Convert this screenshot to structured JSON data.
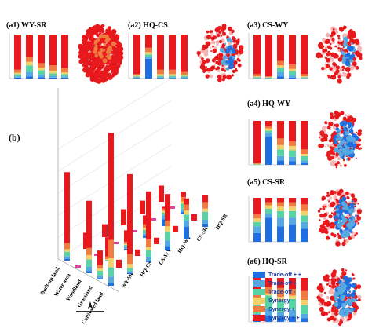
{
  "labels": {
    "b": "(b)"
  },
  "colors": [
    "#1f6fe0",
    "#55a8e0",
    "#58d3a5",
    "#f2d06b",
    "#f07b40",
    "#e8191c"
  ],
  "legend": [
    "Trade-off + +",
    "Trade-off +",
    "Trade-off -",
    "Synergy -",
    "Synergy +",
    "Synergy + +"
  ],
  "panels": [
    {
      "id": "(a1)",
      "name": "WY-SR",
      "bars": [
        [
          0.02,
          0.03,
          0.05,
          0.03,
          0.07,
          0.8
        ],
        [
          0.05,
          0.1,
          0.15,
          0.08,
          0.12,
          0.5
        ],
        [
          0.03,
          0.06,
          0.1,
          0.06,
          0.1,
          0.65
        ],
        [
          0.02,
          0.04,
          0.06,
          0.06,
          0.12,
          0.7
        ],
        [
          0.02,
          0.03,
          0.05,
          0.04,
          0.1,
          0.76
        ]
      ]
    },
    {
      "id": "(a2)",
      "name": "HQ-CS",
      "bars": [
        [
          0.01,
          0.02,
          0.02,
          0.02,
          0.03,
          0.9
        ],
        [
          0.45,
          0.05,
          0.05,
          0.05,
          0.1,
          0.3
        ],
        [
          0.01,
          0.02,
          0.03,
          0.04,
          0.1,
          0.8
        ],
        [
          0.01,
          0.02,
          0.03,
          0.04,
          0.1,
          0.8
        ],
        [
          0.01,
          0.02,
          0.03,
          0.03,
          0.06,
          0.85
        ]
      ]
    },
    {
      "id": "(a3)",
      "name": "CS-WY",
      "bars": [
        [
          0.0,
          0.01,
          0.02,
          0.02,
          0.05,
          0.9
        ],
        [
          0.0,
          0.01,
          0.01,
          0.01,
          0.02,
          0.95
        ],
        [
          0.05,
          0.1,
          0.1,
          0.05,
          0.1,
          0.6
        ],
        [
          0.02,
          0.05,
          0.1,
          0.05,
          0.1,
          0.68
        ],
        [
          0.0,
          0.01,
          0.02,
          0.02,
          0.05,
          0.9
        ]
      ]
    },
    {
      "id": "(a4)",
      "name": "HQ-WY",
      "bars": [
        [
          0.0,
          0.0,
          0.01,
          0.01,
          0.03,
          0.95
        ],
        [
          0.65,
          0.08,
          0.05,
          0.05,
          0.05,
          0.12
        ],
        [
          0.1,
          0.1,
          0.15,
          0.1,
          0.15,
          0.4
        ],
        [
          0.08,
          0.1,
          0.15,
          0.1,
          0.1,
          0.47
        ],
        [
          0.04,
          0.06,
          0.1,
          0.05,
          0.1,
          0.65
        ]
      ]
    },
    {
      "id": "(a5)",
      "name": "CS-SR",
      "bars": [
        [
          0.2,
          0.15,
          0.1,
          0.08,
          0.1,
          0.37
        ],
        [
          0.55,
          0.1,
          0.1,
          0.08,
          0.07,
          0.1
        ],
        [
          0.35,
          0.2,
          0.15,
          0.1,
          0.1,
          0.1
        ],
        [
          0.4,
          0.15,
          0.15,
          0.1,
          0.1,
          0.1
        ],
        [
          0.3,
          0.15,
          0.15,
          0.1,
          0.15,
          0.15
        ]
      ]
    },
    {
      "id": "(a6)",
      "name": "HQ-SR",
      "bars": [
        [
          0.08,
          0.1,
          0.2,
          0.1,
          0.2,
          0.32
        ],
        [
          0.15,
          0.15,
          0.3,
          0.05,
          0.15,
          0.2
        ],
        [
          0.1,
          0.12,
          0.25,
          0.1,
          0.2,
          0.23
        ],
        [
          0.12,
          0.15,
          0.25,
          0.08,
          0.15,
          0.25
        ],
        [
          0.08,
          0.1,
          0.2,
          0.12,
          0.2,
          0.3
        ]
      ]
    }
  ],
  "panel_b": {
    "rows": [
      "WY-SR",
      "HQ-CS",
      "CS-WY",
      "HQ-WY",
      "CS-SR",
      "HQ-SR"
    ],
    "cols": [
      "Built-up land",
      "Water area",
      "Woodland",
      "Grassland",
      "Cultivated land"
    ],
    "bars": [
      [
        [
          0.02,
          0.03,
          0.05,
          0.03,
          0.07,
          0.8
        ],
        [
          0.0,
          0.0,
          0.0,
          0.0,
          0.0,
          1.0
        ],
        [
          0.03,
          0.06,
          0.1,
          0.06,
          0.1,
          0.65
        ],
        [
          0.05,
          0.1,
          0.15,
          0.08,
          0.12,
          0.5
        ],
        [
          0.02,
          0.04,
          0.06,
          0.06,
          0.12,
          0.7
        ]
      ],
      [
        [
          0.0,
          0.0,
          0.0,
          0.0,
          0.0,
          1.0
        ],
        [
          0.0,
          0.0,
          0.0,
          0.0,
          0.0,
          1.0
        ],
        [
          0.01,
          0.02,
          0.03,
          0.04,
          0.1,
          0.8
        ],
        [
          0.0,
          0.0,
          0.0,
          0.0,
          0.0,
          1.0
        ],
        [
          0.01,
          0.02,
          0.03,
          0.04,
          0.1,
          0.8
        ]
      ],
      [
        [
          0.0,
          0.0,
          0.0,
          0.0,
          0.0,
          1.0
        ],
        [
          0.0,
          0.0,
          0.0,
          0.0,
          0.0,
          1.0
        ],
        [
          0.05,
          0.1,
          0.1,
          0.05,
          0.1,
          0.6
        ],
        [
          0.0,
          0.0,
          0.0,
          0.0,
          0.0,
          1.0
        ],
        [
          0.02,
          0.05,
          0.1,
          0.05,
          0.1,
          0.68
        ]
      ],
      [
        [
          0.0,
          0.0,
          0.0,
          0.0,
          0.0,
          1.0
        ],
        [
          0.0,
          0.0,
          0.0,
          0.0,
          0.0,
          1.0
        ],
        [
          0.1,
          0.1,
          0.15,
          0.1,
          0.15,
          0.4
        ],
        [
          0.0,
          0.0,
          0.0,
          0.0,
          0.0,
          1.0
        ],
        [
          0.08,
          0.1,
          0.15,
          0.1,
          0.1,
          0.47
        ]
      ],
      [
        [
          0.0,
          0.0,
          0.0,
          0.0,
          0.0,
          1.0
        ],
        [
          0.0,
          0.0,
          0.0,
          0.0,
          0.0,
          1.0
        ],
        [
          0.35,
          0.2,
          0.15,
          0.1,
          0.1,
          0.1
        ],
        [
          0.0,
          0.0,
          0.0,
          0.0,
          0.0,
          1.0
        ],
        [
          0.3,
          0.15,
          0.15,
          0.1,
          0.15,
          0.15
        ]
      ],
      [
        [
          0.0,
          0.0,
          0.0,
          0.0,
          0.0,
          1.0
        ],
        [
          0.0,
          0.0,
          0.0,
          0.0,
          0.0,
          1.0
        ],
        [
          0.1,
          0.12,
          0.25,
          0.1,
          0.2,
          0.23
        ],
        [
          0.0,
          0.0,
          0.0,
          0.0,
          0.0,
          1.0
        ],
        [
          0.1,
          0.12,
          0.25,
          0.1,
          0.2,
          0.23
        ]
      ]
    ],
    "heights": [
      [
        0.55,
        0.0,
        0.45,
        0.18,
        0.95
      ],
      [
        0.1,
        0.0,
        0.15,
        0.05,
        0.62
      ],
      [
        0.08,
        0.0,
        0.12,
        0.04,
        0.44
      ],
      [
        0.1,
        0.0,
        0.14,
        0.04,
        0.35
      ],
      [
        0.08,
        0.0,
        0.12,
        0.04,
        0.25
      ],
      [
        0.1,
        0.0,
        0.14,
        0.04,
        0.2
      ]
    ]
  }
}
